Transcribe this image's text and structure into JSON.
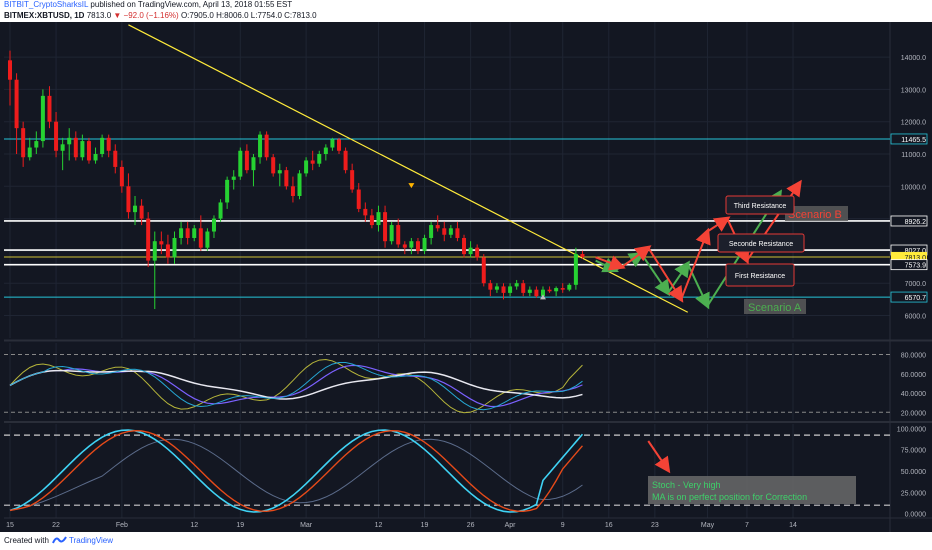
{
  "header": {
    "author": "BITBIT_CryptoSharksIL",
    "published": "published on TradingView.com, April 13, 2018 01:55 EST",
    "symbol": "BITMEX:XBTUSD, 1D",
    "price": "7813.0",
    "change": "−92.0 (−1.16%)",
    "ohlc": "O:7905.0 H:8006.0 L:7754.0 C:7813.0"
  },
  "footer": {
    "created_with": "Created with",
    "brand": "TradingView"
  },
  "chart_data": {
    "type": "candlestick",
    "title": "BITMEX:XBTUSD, 1D",
    "x_axis": {
      "ticks": [
        {
          "label": "15",
          "day": 0
        },
        {
          "label": "22",
          "day": 7
        },
        {
          "label": "Feb",
          "day": 17
        },
        {
          "label": "12",
          "day": 28
        },
        {
          "label": "19",
          "day": 35
        },
        {
          "label": "Mar",
          "day": 45
        },
        {
          "label": "12",
          "day": 56
        },
        {
          "label": "19",
          "day": 63
        },
        {
          "label": "26",
          "day": 70
        },
        {
          "label": "Apr",
          "day": 76
        },
        {
          "label": "9",
          "day": 84
        },
        {
          "label": "16",
          "day": 91
        },
        {
          "label": "23",
          "day": 98
        },
        {
          "label": "May",
          "day": 106
        },
        {
          "label": "7",
          "day": 112
        },
        {
          "label": "14",
          "day": 119
        }
      ]
    },
    "y_axis": {
      "ticks": [
        "14000.0",
        "13000.0",
        "12000.0",
        "11000.0",
        "10000.0",
        "9000.0",
        "8000.0",
        "7000.0",
        "6000.0"
      ],
      "range": [
        5800,
        14800
      ]
    },
    "price_levels": [
      {
        "label": "11465.5",
        "value": 11465.5,
        "color": "#26c6da"
      },
      {
        "label": "8926.2",
        "value": 8926.2,
        "color": "#ffffff"
      },
      {
        "label": "8027.0",
        "value": 8027,
        "color": "#ffffff"
      },
      {
        "label": "7813.0",
        "value": 7813,
        "color": "#ffeb3b"
      },
      {
        "label": "7573.9",
        "value": 7573.9,
        "color": "#ffffff"
      },
      {
        "label": "6570.7",
        "value": 6570.7,
        "color": "#26c6da"
      }
    ],
    "candles": [
      [
        13900,
        14200,
        12500,
        13300
      ],
      [
        13300,
        13500,
        11000,
        11800
      ],
      [
        11800,
        12000,
        10600,
        10900
      ],
      [
        10900,
        11500,
        10800,
        11200
      ],
      [
        11200,
        11700,
        11000,
        11400
      ],
      [
        11400,
        13000,
        11200,
        12800
      ],
      [
        12800,
        13100,
        11800,
        12000
      ],
      [
        12000,
        12300,
        10900,
        11100
      ],
      [
        11100,
        11500,
        10500,
        11300
      ],
      [
        11300,
        11800,
        10800,
        11500
      ],
      [
        11500,
        11700,
        10800,
        10900
      ],
      [
        10900,
        11600,
        10800,
        11400
      ],
      [
        11400,
        11500,
        10700,
        10800
      ],
      [
        10800,
        11200,
        10700,
        11000
      ],
      [
        11000,
        11600,
        10900,
        11500
      ],
      [
        11500,
        11600,
        10900,
        11100
      ],
      [
        11100,
        11300,
        10400,
        10600
      ],
      [
        10600,
        10800,
        9800,
        10000
      ],
      [
        10000,
        10400,
        9000,
        9200
      ],
      [
        9200,
        9700,
        8800,
        9400
      ],
      [
        9400,
        9600,
        8800,
        9000
      ],
      [
        9000,
        9200,
        7500,
        7700
      ],
      [
        7700,
        8600,
        6200,
        8300
      ],
      [
        8300,
        8600,
        7900,
        8200
      ],
      [
        8200,
        8500,
        7600,
        7800
      ],
      [
        7800,
        8600,
        7600,
        8400
      ],
      [
        8400,
        8900,
        8200,
        8700
      ],
      [
        8700,
        8900,
        8200,
        8400
      ],
      [
        8400,
        8800,
        8300,
        8700
      ],
      [
        8700,
        9100,
        8000,
        8100
      ],
      [
        8100,
        8700,
        8000,
        8600
      ],
      [
        8600,
        9100,
        8400,
        9000
      ],
      [
        9000,
        9600,
        8900,
        9500
      ],
      [
        9500,
        10300,
        9300,
        10200
      ],
      [
        10200,
        10500,
        9900,
        10300
      ],
      [
        10300,
        11200,
        10200,
        11100
      ],
      [
        11100,
        11300,
        10400,
        10500
      ],
      [
        10500,
        11000,
        10000,
        10900
      ],
      [
        10900,
        11700,
        10700,
        11600
      ],
      [
        11600,
        11700,
        10800,
        10900
      ],
      [
        10900,
        11000,
        10300,
        10400
      ],
      [
        10400,
        10700,
        10000,
        10500
      ],
      [
        10500,
        10600,
        9900,
        10000
      ],
      [
        10000,
        10300,
        9500,
        9700
      ],
      [
        9700,
        10500,
        9600,
        10400
      ],
      [
        10400,
        10900,
        10300,
        10800
      ],
      [
        10800,
        11100,
        10500,
        10700
      ],
      [
        10700,
        11100,
        10600,
        11000
      ],
      [
        11000,
        11300,
        10800,
        11200
      ],
      [
        11200,
        11500,
        11100,
        11450
      ],
      [
        11450,
        11500,
        11000,
        11100
      ],
      [
        11100,
        11200,
        10400,
        10500
      ],
      [
        10500,
        10700,
        9800,
        9900
      ],
      [
        9900,
        10100,
        9200,
        9300
      ],
      [
        9300,
        9500,
        8900,
        9100
      ],
      [
        9100,
        9300,
        8700,
        8800
      ],
      [
        8800,
        9400,
        8600,
        9200
      ],
      [
        9200,
        9400,
        8100,
        8300
      ],
      [
        8300,
        8900,
        8200,
        8800
      ],
      [
        8800,
        9000,
        8100,
        8200
      ],
      [
        8200,
        8300,
        7900,
        8100
      ],
      [
        8100,
        8400,
        7900,
        8300
      ],
      [
        8300,
        8400,
        7900,
        8000
      ],
      [
        8000,
        8500,
        7900,
        8400
      ],
      [
        8400,
        8900,
        8200,
        8800
      ],
      [
        8800,
        9100,
        8600,
        8700
      ],
      [
        8700,
        8900,
        8300,
        8500
      ],
      [
        8500,
        8800,
        8400,
        8700
      ],
      [
        8700,
        8900,
        8300,
        8400
      ],
      [
        8400,
        8500,
        7800,
        7900
      ],
      [
        7900,
        8300,
        7800,
        8100
      ],
      [
        8100,
        8200,
        7700,
        7800
      ],
      [
        7800,
        7900,
        6900,
        7000
      ],
      [
        7000,
        7100,
        6600,
        6800
      ],
      [
        6800,
        7000,
        6700,
        6900
      ],
      [
        6900,
        7000,
        6500,
        6700
      ],
      [
        6700,
        7000,
        6600,
        6900
      ],
      [
        6900,
        7100,
        6800,
        7000
      ],
      [
        7000,
        7100,
        6600,
        6700
      ],
      [
        6700,
        6900,
        6600,
        6800
      ],
      [
        6800,
        6900,
        6550,
        6600
      ],
      [
        6600,
        6900,
        6500,
        6800
      ],
      [
        6800,
        6900,
        6700,
        6750
      ],
      [
        6750,
        6900,
        6600,
        6850
      ],
      [
        6850,
        7000,
        6700,
        6800
      ],
      [
        6800,
        7000,
        6750,
        6950
      ],
      [
        6950,
        8100,
        6800,
        7905
      ],
      [
        7905,
        8006,
        7754,
        7813
      ]
    ],
    "trendline": {
      "from": {
        "day": 18,
        "price": 15000
      },
      "to": {
        "day": 103,
        "price": 6100
      },
      "color": "#ffeb3b"
    },
    "resistance_boxes": [
      "Third Resistance",
      "Seconde Resistance",
      "First Resistance"
    ],
    "scenarios": [
      {
        "name": "Scenario A",
        "color": "#4caf50",
        "path": [
          [
            89,
            7700
          ],
          [
            92,
            7400
          ],
          [
            96,
            7900
          ],
          [
            100,
            6700
          ],
          [
            103,
            7600
          ],
          [
            106,
            6300
          ],
          [
            117,
            9800
          ]
        ]
      },
      {
        "name": "Scenario B",
        "color": "#f44336",
        "path": [
          [
            89,
            7800
          ],
          [
            93,
            7500
          ],
          [
            97,
            8100
          ],
          [
            102,
            6500
          ],
          [
            106,
            8600
          ],
          [
            109,
            9000
          ],
          [
            112,
            7700
          ],
          [
            120,
            10100
          ]
        ]
      }
    ],
    "indicator1": {
      "type": "line",
      "ticks": [
        "80.0000",
        "60.0000",
        "40.0000",
        "20.0000"
      ],
      "range": [
        12,
        92
      ]
    },
    "indicator2": {
      "type": "line",
      "ticks": [
        "100.0000",
        "75.0000",
        "50.0000",
        "25.0000",
        "0.0000"
      ],
      "range": [
        -5,
        105
      ]
    },
    "annotation": {
      "line1": "Stoch - Very high",
      "line2": "MA is on perfect position for Correction"
    }
  },
  "colors": {
    "bull": "#26d232",
    "bear": "#ef1c1c",
    "bg": "#131722",
    "grid": "#1f2533"
  }
}
